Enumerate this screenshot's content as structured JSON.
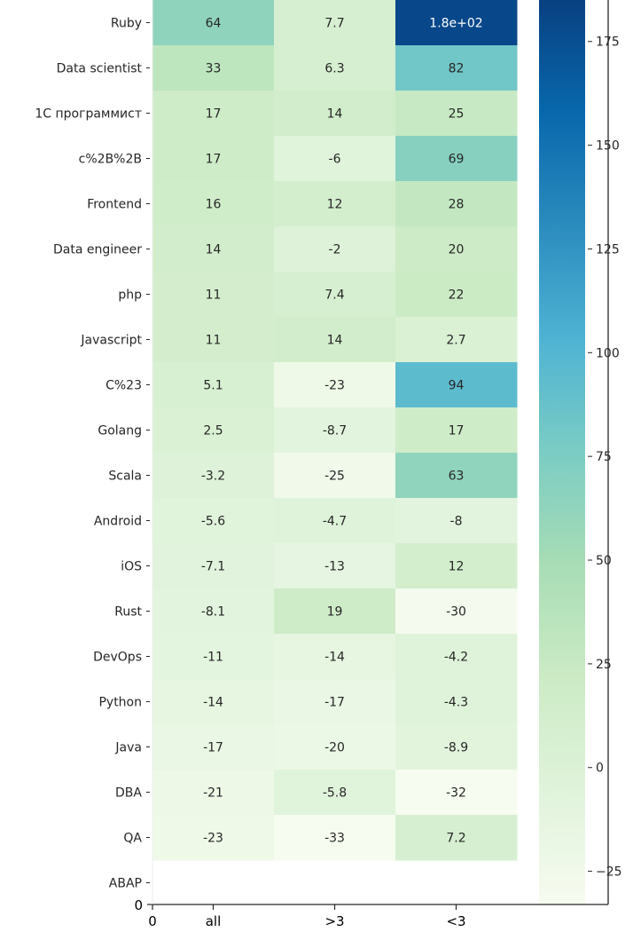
{
  "chart_data": {
    "type": "heatmap",
    "title": "",
    "xlabel": "",
    "ylabel": "",
    "columns": [
      "all",
      ">3",
      "<3"
    ],
    "rows": [
      "Ruby",
      "Data scientist",
      "1С программист",
      "c%2B%2B",
      "Frontend",
      "Data engineer",
      "php",
      "Javascript",
      "C%23",
      "Golang",
      "Scala",
      "Android",
      "iOS",
      "Rust",
      "DevOps",
      "Python",
      "Java",
      "DBA",
      "QA",
      "ABAP"
    ],
    "values": [
      [
        64,
        7.7,
        180
      ],
      [
        33,
        6.3,
        82
      ],
      [
        17,
        14,
        25
      ],
      [
        17,
        -6,
        69
      ],
      [
        16,
        12,
        28
      ],
      [
        14,
        -2,
        20
      ],
      [
        11,
        7.4,
        22
      ],
      [
        11,
        14,
        2.7
      ],
      [
        5.1,
        -23,
        94
      ],
      [
        2.5,
        -8.7,
        17
      ],
      [
        -3.2,
        -25,
        63
      ],
      [
        -5.6,
        -4.7,
        -8
      ],
      [
        -7.1,
        -13,
        12
      ],
      [
        -8.1,
        19,
        -30
      ],
      [
        -11,
        -14,
        -4.2
      ],
      [
        -14,
        -17,
        -4.3
      ],
      [
        -17,
        -20,
        -8.9
      ],
      [
        -21,
        -5.8,
        -32
      ],
      [
        -23,
        -33,
        7.2
      ],
      [
        null,
        null,
        null
      ]
    ],
    "annotations": [
      [
        "64",
        "7.7",
        "1.8e+02"
      ],
      [
        "33",
        "6.3",
        "82"
      ],
      [
        "17",
        "14",
        "25"
      ],
      [
        "17",
        "-6",
        "69"
      ],
      [
        "16",
        "12",
        "28"
      ],
      [
        "14",
        "-2",
        "20"
      ],
      [
        "11",
        "7.4",
        "22"
      ],
      [
        "11",
        "14",
        "2.7"
      ],
      [
        "5.1",
        "-23",
        "94"
      ],
      [
        "2.5",
        "-8.7",
        "17"
      ],
      [
        "-3.2",
        "-25",
        "63"
      ],
      [
        "-5.6",
        "-4.7",
        "-8"
      ],
      [
        "-7.1",
        "-13",
        "12"
      ],
      [
        "-8.1",
        "19",
        "-30"
      ],
      [
        "-11",
        "-14",
        "-4.2"
      ],
      [
        "-14",
        "-17",
        "-4.3"
      ],
      [
        "-17",
        "-20",
        "-8.9"
      ],
      [
        "-21",
        "-5.8",
        "-32"
      ],
      [
        "-23",
        "-33",
        "7.2"
      ],
      [
        "",
        "",
        ""
      ]
    ],
    "x_tick_labels": [
      "0",
      "all",
      ">3",
      "<3"
    ],
    "y_origin_label": "0",
    "colormap": "GnBu",
    "colorbar": {
      "range": [
        -33,
        185
      ],
      "ticks": [
        -25,
        0,
        25,
        50,
        75,
        100,
        125,
        150,
        175
      ],
      "tick_labels": [
        "−25",
        "0",
        "25",
        "50",
        "75",
        "100",
        "125",
        "150",
        "175"
      ]
    },
    "grid": false,
    "legend": "colorbar-right"
  }
}
